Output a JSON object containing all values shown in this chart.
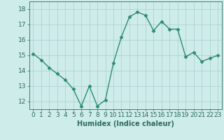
{
  "x": [
    0,
    1,
    2,
    3,
    4,
    5,
    6,
    7,
    8,
    9,
    10,
    11,
    12,
    13,
    14,
    15,
    16,
    17,
    18,
    19,
    20,
    21,
    22,
    23
  ],
  "y": [
    15.1,
    14.7,
    14.2,
    13.8,
    13.4,
    12.8,
    11.7,
    13.0,
    11.7,
    12.1,
    14.5,
    16.2,
    17.5,
    17.8,
    17.6,
    16.6,
    17.2,
    16.7,
    16.7,
    14.9,
    15.2,
    14.6,
    14.8,
    15.0
  ],
  "line_color": "#2e8b72",
  "marker": "D",
  "marker_size": 2.5,
  "bg_color": "#ceecea",
  "grid_color": "#aed4d0",
  "axis_color": "#2e6b5e",
  "xlabel": "Humidex (Indice chaleur)",
  "ylim": [
    11.5,
    18.5
  ],
  "xlim": [
    -0.5,
    23.5
  ],
  "yticks": [
    12,
    13,
    14,
    15,
    16,
    17,
    18
  ],
  "xticks": [
    0,
    1,
    2,
    3,
    4,
    5,
    6,
    7,
    8,
    9,
    10,
    11,
    12,
    13,
    14,
    15,
    16,
    17,
    18,
    19,
    20,
    21,
    22,
    23
  ],
  "label_fontsize": 7,
  "tick_fontsize": 6.5
}
